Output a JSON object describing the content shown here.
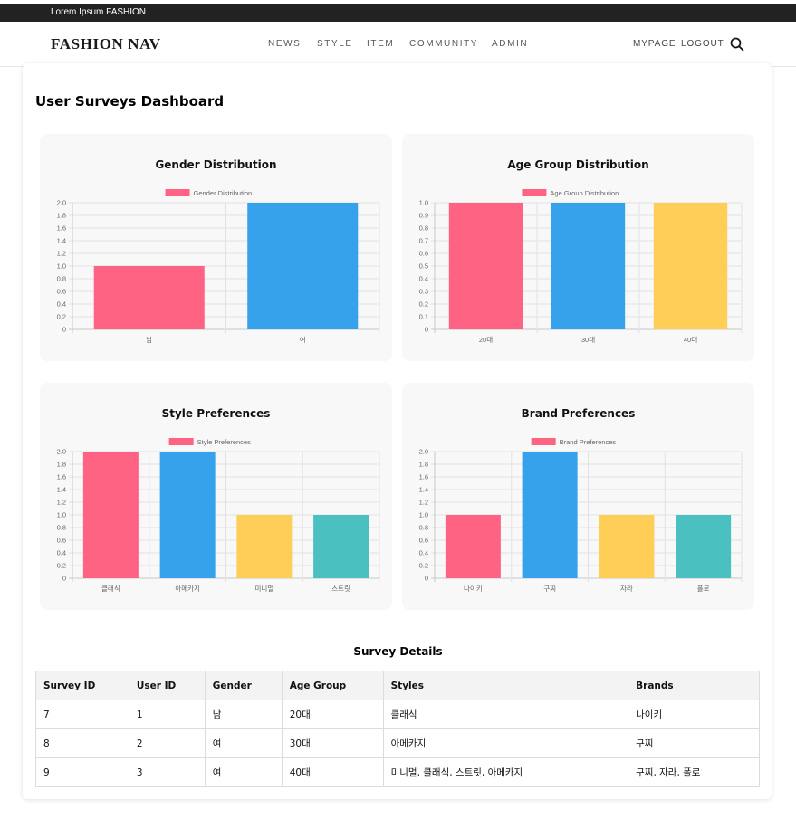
{
  "topbar": {
    "text": "Lorem Ipsum FASHION"
  },
  "nav": {
    "brand": "FASHION NAV",
    "links": [
      "NEWS",
      "STYLE",
      "ITEM",
      "COMMUNITY",
      "ADMIN"
    ],
    "mypage": "MYPAGE",
    "logout": "LOGOUT",
    "search_icon": "search-icon"
  },
  "page": {
    "title": "User Surveys Dashboard"
  },
  "colors": {
    "pink": "#ff6384",
    "blue": "#36a2eb",
    "yellow": "#ffce56",
    "teal": "#4bc0c0"
  },
  "chart_data": [
    {
      "type": "bar",
      "title": "Gender Distribution",
      "legend": "Gender Distribution",
      "categories": [
        "남",
        "여"
      ],
      "values": [
        1,
        2
      ],
      "ylim": [
        0,
        2
      ],
      "yticks": [
        "2.0",
        "1.8",
        "1.6",
        "1.4",
        "1.2",
        "1.0",
        "0.8",
        "0.6",
        "0.4",
        "0.2",
        "0"
      ],
      "colors": [
        "#ff6384",
        "#36a2eb"
      ],
      "grid": true,
      "legend_position": "top"
    },
    {
      "type": "bar",
      "title": "Age Group Distribution",
      "legend": "Age Group Distribution",
      "categories": [
        "20대",
        "30대",
        "40대"
      ],
      "values": [
        1,
        1,
        1
      ],
      "ylim": [
        0,
        1
      ],
      "yticks": [
        "1.0",
        "0.9",
        "0.8",
        "0.7",
        "0.6",
        "0.5",
        "0.4",
        "0.3",
        "0.2",
        "0.1",
        "0"
      ],
      "colors": [
        "#ff6384",
        "#36a2eb",
        "#ffce56"
      ],
      "grid": true,
      "legend_position": "top"
    },
    {
      "type": "bar",
      "title": "Style Preferences",
      "legend": "Style Preferences",
      "categories": [
        "클래식",
        "아메카지",
        "미니멀",
        "스트릿"
      ],
      "values": [
        2,
        2,
        1,
        1
      ],
      "ylim": [
        0,
        2
      ],
      "yticks": [
        "2.0",
        "1.8",
        "1.6",
        "1.4",
        "1.2",
        "1.0",
        "0.8",
        "0.6",
        "0.4",
        "0.2",
        "0"
      ],
      "colors": [
        "#ff6384",
        "#36a2eb",
        "#ffce56",
        "#4bc0c0"
      ],
      "grid": true,
      "legend_position": "top"
    },
    {
      "type": "bar",
      "title": "Brand Preferences",
      "legend": "Brand Preferences",
      "categories": [
        "나이키",
        "구찌",
        "자라",
        "폴로"
      ],
      "values": [
        1,
        2,
        1,
        1
      ],
      "ylim": [
        0,
        2
      ],
      "yticks": [
        "2.0",
        "1.8",
        "1.6",
        "1.4",
        "1.2",
        "1.0",
        "0.8",
        "0.6",
        "0.4",
        "0.2",
        "0"
      ],
      "colors": [
        "#ff6384",
        "#36a2eb",
        "#ffce56",
        "#4bc0c0"
      ],
      "grid": true,
      "legend_position": "top"
    }
  ],
  "details": {
    "title": "Survey Details",
    "columns": [
      "Survey ID",
      "User ID",
      "Gender",
      "Age Group",
      "Styles",
      "Brands"
    ],
    "rows": [
      [
        "7",
        "1",
        "남",
        "20대",
        "클래식",
        "나이키"
      ],
      [
        "8",
        "2",
        "여",
        "30대",
        "아메카지",
        "구찌"
      ],
      [
        "9",
        "3",
        "여",
        "40대",
        "미니멀, 클래식, 스트릿, 아메카지",
        "구찌, 자라, 폴로"
      ]
    ]
  }
}
